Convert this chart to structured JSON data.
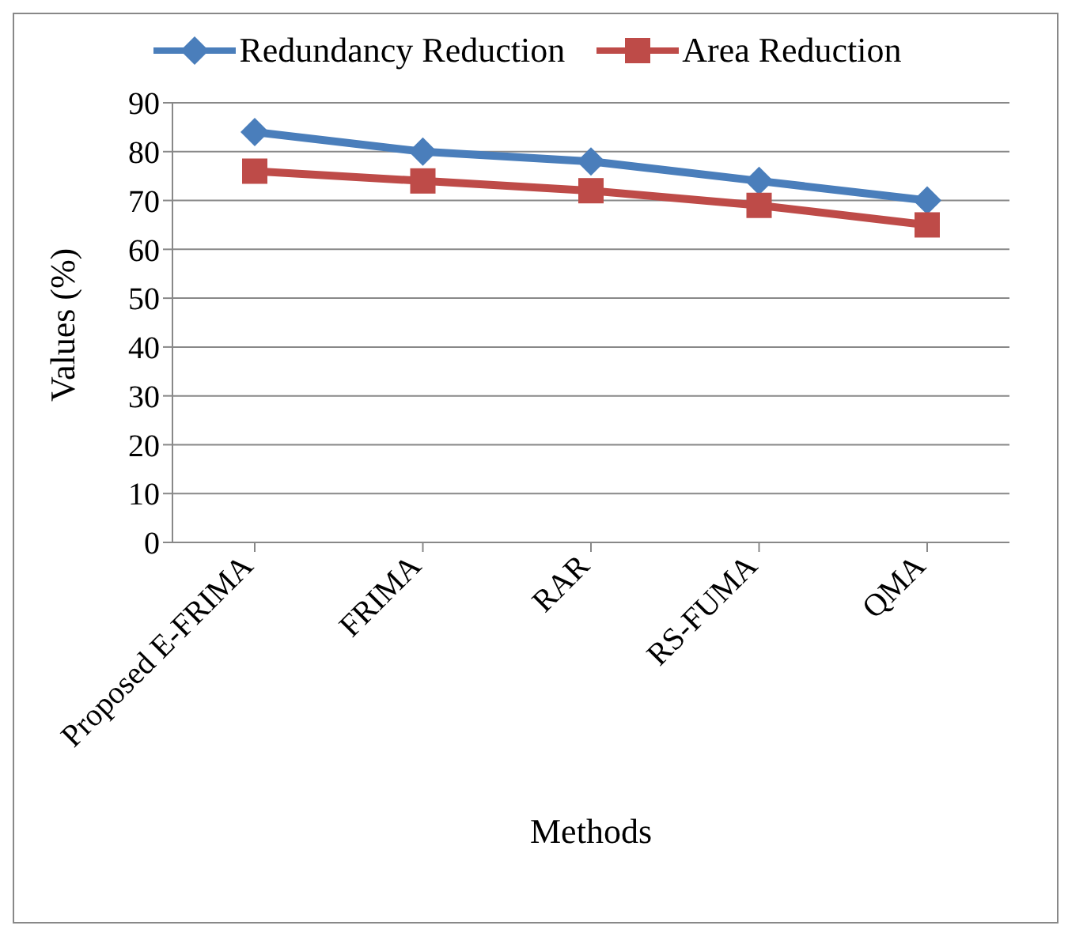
{
  "chart_data": {
    "type": "line",
    "xlabel": "Methods",
    "ylabel": "Values (%)",
    "categories": [
      "Proposed E-FRIMA",
      "FRIMA",
      "RAR",
      "RS-FUMA",
      "QMA"
    ],
    "series": [
      {
        "name": "Redundancy Reduction",
        "color": "#4a7ebb",
        "marker": "diamond",
        "values": [
          84,
          80,
          78,
          74,
          70
        ]
      },
      {
        "name": "Area Reduction",
        "color": "#be4b48",
        "marker": "square",
        "values": [
          76,
          74,
          72,
          69,
          65
        ]
      }
    ],
    "ylim": [
      0,
      90
    ],
    "yticks": [
      0,
      10,
      20,
      30,
      40,
      50,
      60,
      70,
      80,
      90
    ],
    "grid": "y",
    "legend": "top"
  }
}
